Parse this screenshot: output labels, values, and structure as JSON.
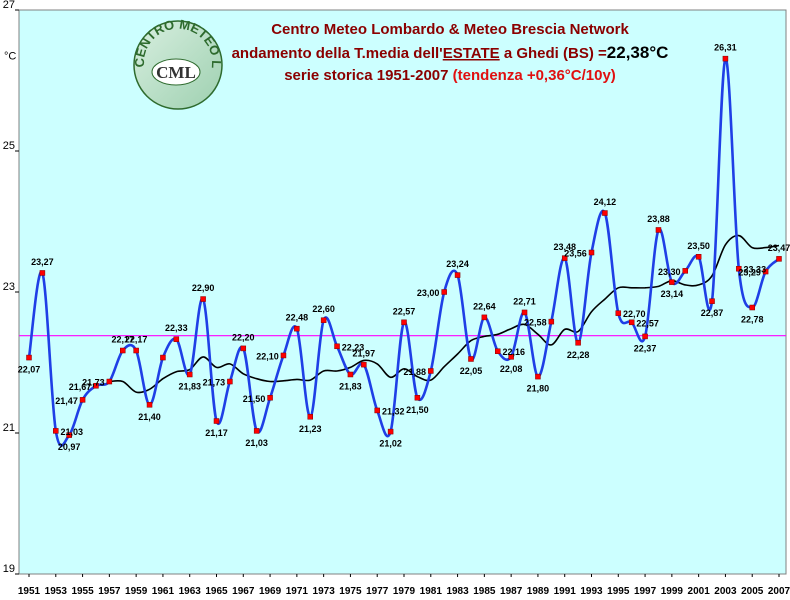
{
  "header": {
    "line1": "Centro Meteo Lombardo & Meteo Brescia Network",
    "line2_prefix": "andamento della T.media dell'",
    "line2_season": "ESTATE",
    "line2_mid": " a Ghedi (BS) =",
    "line2_value": "22,38°C",
    "line3_prefix": "serie storica 1951-2007 ",
    "line3_trend": "(tendenza +0,36°C/10y)"
  },
  "logo": {
    "ring_text": "CENTRO METEO LOMBARDO",
    "initials": "CML"
  },
  "chart_data": {
    "type": "line",
    "unit_label": "°C",
    "ylim": [
      19,
      27
    ],
    "yticks": [
      19,
      21,
      23,
      25,
      27
    ],
    "xlim": [
      1951,
      2007
    ],
    "x_tick_labels": [
      "1951",
      "1953",
      "1955",
      "1957",
      "1959",
      "1961",
      "1963",
      "1965",
      "1967",
      "1969",
      "1971",
      "1973",
      "1975",
      "1977",
      "1979",
      "1981",
      "1983",
      "1985",
      "1987",
      "1989",
      "1991",
      "1993",
      "1995",
      "1997",
      "1999",
      "2001",
      "2003",
      "2005",
      "2007"
    ],
    "mean_line": 22.38,
    "years": [
      1951,
      1952,
      1953,
      1954,
      1955,
      1956,
      1957,
      1958,
      1959,
      1960,
      1961,
      1962,
      1963,
      1964,
      1965,
      1966,
      1967,
      1968,
      1969,
      1970,
      1971,
      1972,
      1973,
      1974,
      1975,
      1976,
      1977,
      1978,
      1979,
      1980,
      1981,
      1982,
      1983,
      1984,
      1985,
      1986,
      1987,
      1988,
      1989,
      1990,
      1991,
      1992,
      1993,
      1994,
      1995,
      1996,
      1997,
      1998,
      1999,
      2000,
      2001,
      2002,
      2003,
      2004,
      2005,
      2006,
      2007
    ],
    "series": [
      {
        "values": [
          22.07,
          23.27,
          21.03,
          20.97,
          21.47,
          21.67,
          21.73,
          22.17,
          22.17,
          21.4,
          22.07,
          22.33,
          21.83,
          22.9,
          21.17,
          21.73,
          22.2,
          21.03,
          21.5,
          22.1,
          22.48,
          21.23,
          22.6,
          22.23,
          21.83,
          21.97,
          21.32,
          21.02,
          22.57,
          21.5,
          21.88,
          23.0,
          23.24,
          22.05,
          22.64,
          22.16,
          22.08,
          22.71,
          21.8,
          22.58,
          23.48,
          22.28,
          23.56,
          24.12,
          22.7,
          22.57,
          22.37,
          23.88,
          23.14,
          23.3,
          23.5,
          22.87,
          26.31,
          23.33,
          22.78,
          23.29,
          23.47
        ],
        "labels": [
          "22,07",
          "23,27",
          "21,03",
          "20,97",
          "21,47",
          "21,67",
          "21,73",
          "22,17",
          "22,17",
          "21,40",
          "",
          "22,33",
          "21,83",
          "22,90",
          "21,17",
          "21,73",
          "22,20",
          "21,03",
          "21,50",
          "22,10",
          "22,48",
          "21,23",
          "22,60",
          "22,23",
          "21,83",
          "21,97",
          "21,32",
          "21,02",
          "22,57",
          "21,50",
          "21,88",
          "23,00",
          "23,24",
          "22,05",
          "22,64",
          "22,16",
          "22,08",
          "22,71",
          "21,80",
          "22,58",
          "23,48",
          "22,28",
          "23,56",
          "24,12",
          "22,70",
          "22,57",
          "22,37",
          "23,88",
          "23,14",
          "23,30",
          "23,50",
          "22,87",
          "26,31",
          "23,33",
          "22,78",
          "23,29",
          "23,47"
        ],
        "marker_color": "#ff0000",
        "line_color": "#1f3fe6"
      },
      {
        "values": [
          null,
          null,
          null,
          null,
          null,
          null,
          21.73,
          21.73,
          21.58,
          21.62,
          21.77,
          21.87,
          21.9,
          22.08,
          21.93,
          21.98,
          21.84,
          21.77,
          21.73,
          21.74,
          21.76,
          21.75,
          21.88,
          21.88,
          21.93,
          22.03,
          21.98,
          21.79,
          21.91,
          21.8,
          21.75,
          21.94,
          22.12,
          22.31,
          22.37,
          22.4,
          22.48,
          22.54,
          22.4,
          22.25,
          22.47,
          22.44,
          22.72,
          22.9,
          23.06,
          23.06,
          23.06,
          23.08,
          23.16,
          23.1,
          23.1,
          23.23,
          23.67,
          23.8,
          23.63,
          23.63,
          23.66
        ],
        "line_color": "#000000"
      }
    ],
    "grid": false,
    "mean_line_color": "#ff00ff",
    "plot_background": "#ccffff"
  }
}
